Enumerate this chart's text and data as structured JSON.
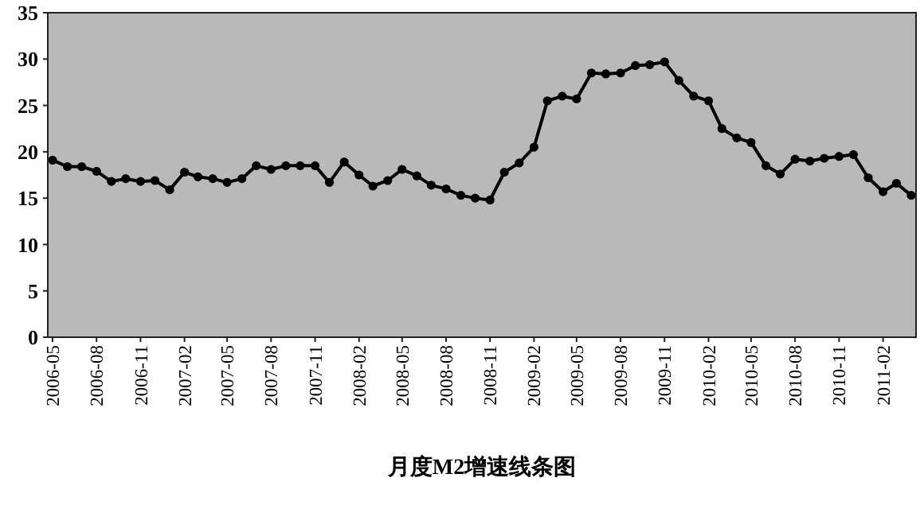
{
  "chart_data": {
    "type": "line",
    "title": "月度M2增速线条图",
    "x": [
      "2006-05",
      "2006-06",
      "2006-07",
      "2006-08",
      "2006-09",
      "2006-10",
      "2006-11",
      "2006-12",
      "2007-01",
      "2007-02",
      "2007-03",
      "2007-04",
      "2007-05",
      "2007-06",
      "2007-07",
      "2007-08",
      "2007-09",
      "2007-10",
      "2007-11",
      "2007-12",
      "2008-01",
      "2008-02",
      "2008-03",
      "2008-04",
      "2008-05",
      "2008-06",
      "2008-07",
      "2008-08",
      "2008-09",
      "2008-10",
      "2008-11",
      "2008-12",
      "2009-01",
      "2009-02",
      "2009-03",
      "2009-04",
      "2009-05",
      "2009-06",
      "2009-07",
      "2009-08",
      "2009-09",
      "2009-10",
      "2009-11",
      "2009-12",
      "2010-01",
      "2010-02",
      "2010-03",
      "2010-04",
      "2010-05",
      "2010-06",
      "2010-07",
      "2010-08",
      "2010-09",
      "2010-10",
      "2010-11",
      "2010-12",
      "2011-01",
      "2011-02",
      "2011-03",
      "2011-04"
    ],
    "series": [
      {
        "color": "#000000",
        "values": [
          19.1,
          18.4,
          18.4,
          17.9,
          16.8,
          17.1,
          16.8,
          16.9,
          15.9,
          17.8,
          17.3,
          17.1,
          16.7,
          17.1,
          18.5,
          18.1,
          18.5,
          18.5,
          18.5,
          16.7,
          18.9,
          17.5,
          16.3,
          16.9,
          18.1,
          17.4,
          16.4,
          16.0,
          15.3,
          15.0,
          14.8,
          17.8,
          18.8,
          20.5,
          25.5,
          26.0,
          25.7,
          28.5,
          28.4,
          28.5,
          29.3,
          29.4,
          29.7,
          27.7,
          26.0,
          25.5,
          22.5,
          21.5,
          21.0,
          18.5,
          17.6,
          19.2,
          19.0,
          19.3,
          19.5,
          19.7,
          17.2,
          15.7,
          16.6,
          15.3
        ]
      }
    ],
    "xlim": [
      "2006-05",
      "2011-04"
    ],
    "xticks": [
      "2006-05",
      "2006-08",
      "2006-11",
      "2007-02",
      "2007-05",
      "2007-08",
      "2007-11",
      "2008-02",
      "2008-05",
      "2008-08",
      "2008-11",
      "2009-02",
      "2009-05",
      "2009-08",
      "2009-11",
      "2010-02",
      "2010-05",
      "2010-08",
      "2010-11",
      "2011-02"
    ],
    "ylim": [
      0,
      35
    ],
    "yticks": [
      0,
      5,
      10,
      15,
      20,
      25,
      30,
      35
    ],
    "grid": false,
    "marker": "circle",
    "line_style": "solid"
  }
}
